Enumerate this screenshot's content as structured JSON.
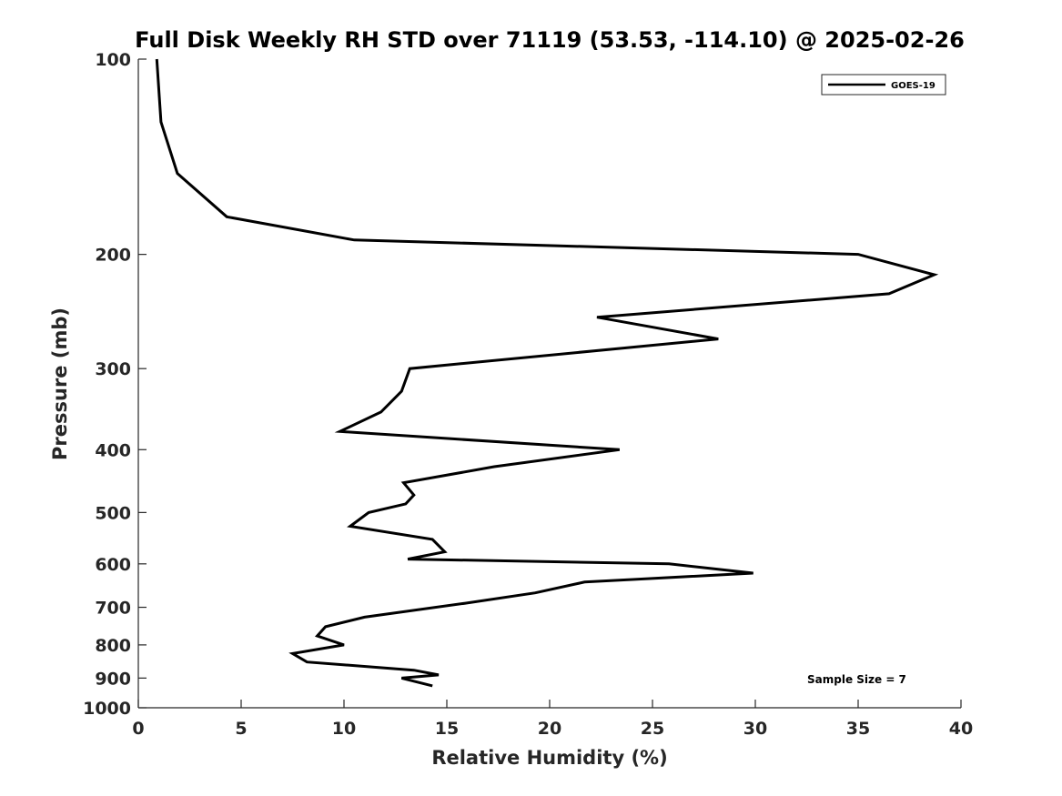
{
  "chart_data": {
    "type": "line",
    "title": "Full Disk Weekly RH STD over 71119 (53.53, -114.10) @ 2025-02-26",
    "xlabel": "Relative Humidity (%)",
    "ylabel": "Pressure (mb)",
    "xlim": [
      0,
      40
    ],
    "ylim": [
      100,
      1000
    ],
    "y_scale": "log",
    "y_reversed": true,
    "x_ticks": [
      "0",
      "5",
      "10",
      "15",
      "20",
      "25",
      "30",
      "35",
      "40"
    ],
    "y_ticks": [
      "100",
      "200",
      "300",
      "400",
      "500",
      "600",
      "700",
      "800",
      "900",
      "1000"
    ],
    "grid": false,
    "legend_position": "top-right",
    "annotation": "Sample Size = 7",
    "series": [
      {
        "name": "GOES-19",
        "color": "#000000",
        "x": [
          0.9,
          1.1,
          1.9,
          4.3,
          10.5,
          35.0,
          38.7,
          36.5,
          22.3,
          28.2,
          13.2,
          12.8,
          11.8,
          9.8,
          15.3,
          23.4,
          17.3,
          12.9,
          13.4,
          13.0,
          11.2,
          10.3,
          14.3,
          14.9,
          13.1,
          25.8,
          29.9,
          21.7,
          19.3,
          15.9,
          11.0,
          9.1,
          8.7,
          10.0,
          7.5,
          8.2,
          13.4,
          14.6,
          12.8,
          14.3
        ],
        "y": [
          100,
          125,
          150,
          175,
          190,
          200,
          215,
          230,
          250,
          270,
          300,
          325,
          350,
          375,
          385,
          400,
          425,
          450,
          470,
          485,
          500,
          525,
          550,
          575,
          590,
          600,
          620,
          640,
          665,
          690,
          725,
          750,
          775,
          800,
          825,
          850,
          875,
          890,
          900,
          925
        ]
      }
    ]
  }
}
